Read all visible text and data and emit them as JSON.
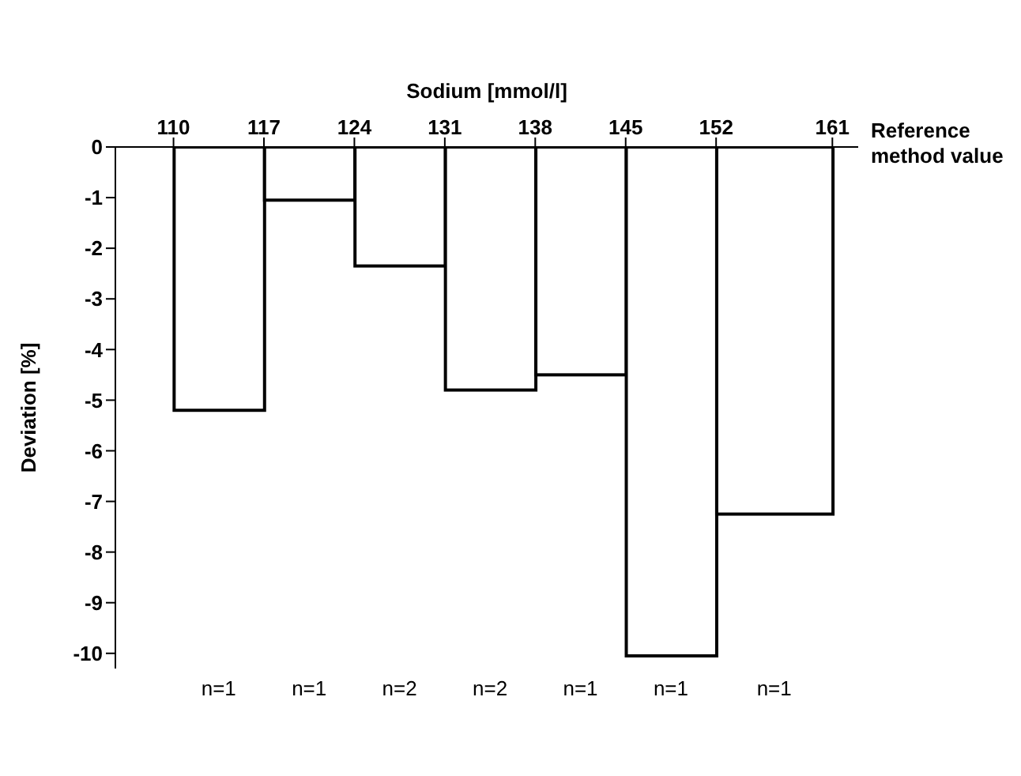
{
  "chart_data": {
    "type": "histogram",
    "xlabel": "Sodium [mmol/l]",
    "ylabel": "Deviation [%]",
    "bins": [
      110,
      117,
      124,
      131,
      138,
      145,
      152,
      161
    ],
    "values": [
      -5.2,
      -1.05,
      -2.35,
      -4.8,
      -4.5,
      -10.05,
      -7.25
    ],
    "color": "#ffffff",
    "xlim": [
      105.5,
      163
    ],
    "xticks": [
      110,
      117,
      124,
      131,
      138,
      145,
      152,
      161
    ],
    "ylim": [
      -10.3,
      0
    ],
    "yticks": [
      0,
      -1,
      -2,
      -3,
      -4,
      -5,
      -6,
      -7,
      -8,
      -9,
      -10
    ],
    "annotations": [
      "Reference method value",
      "n=1",
      "n=1",
      "n=2",
      "n=2",
      "n=1",
      "n=1",
      "n=1"
    ]
  }
}
